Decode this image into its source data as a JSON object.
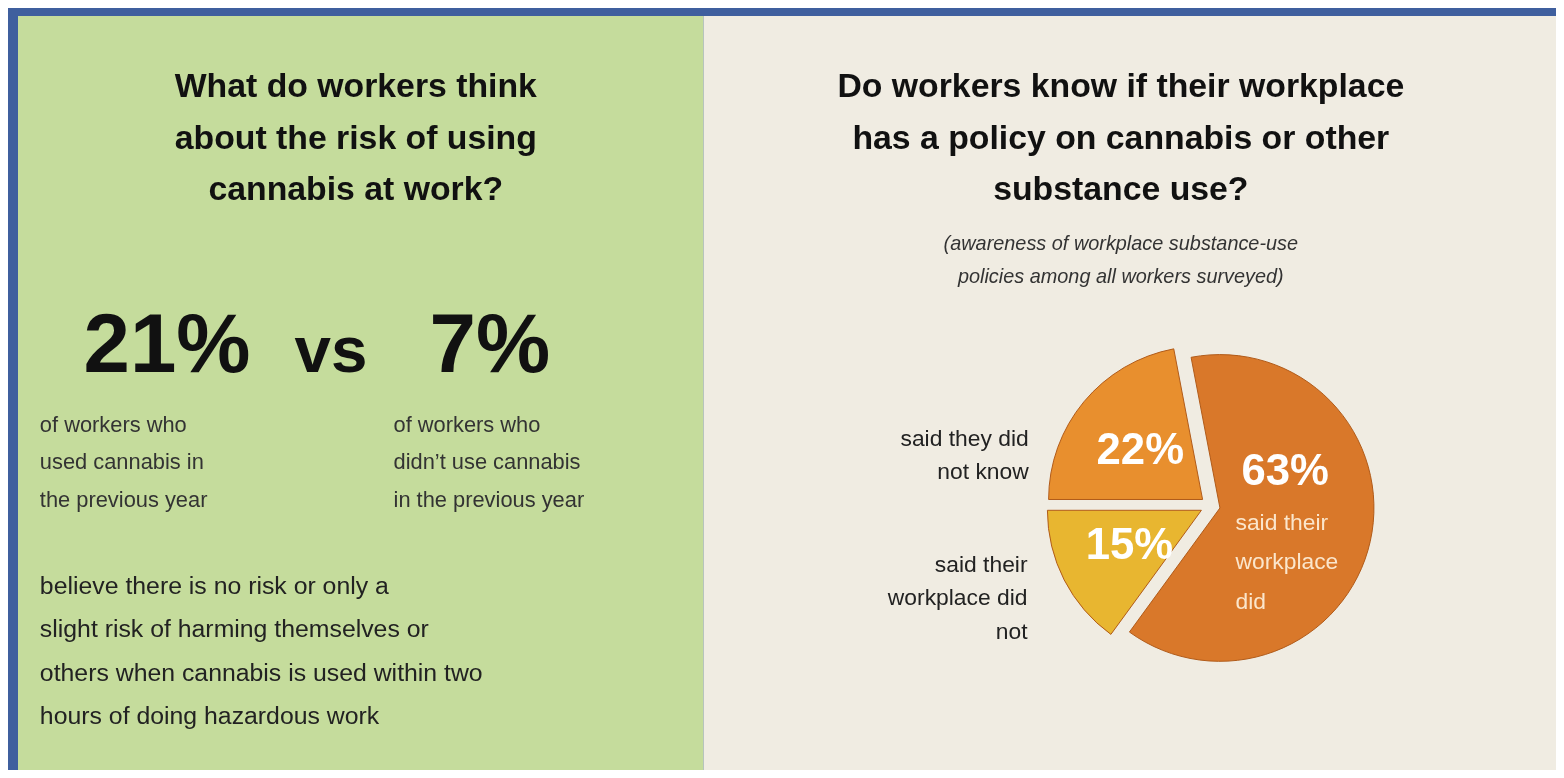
{
  "chart_data": [
    {
      "type": "other",
      "title": "What do workers think about the risk of using cannabis at work?",
      "annotations": [
        "21%",
        "vs",
        "7%",
        "of workers who used cannabis in the previous year",
        "of workers who didn’t use cannabis in the previous year",
        "believe there is no risk or only a slight risk of harming themselves or others when cannabis is used within two hours of doing hazardous work"
      ]
    },
    {
      "type": "pie",
      "title": "Do workers know if their workplace has a policy on cannabis or other substance use?",
      "subtitle": "(awareness of workplace substance-use policies among all workers surveyed)",
      "categories": [
        "said their workplace did",
        "said their workplace did not",
        "said they did not know"
      ],
      "values": [
        63,
        15,
        22
      ],
      "colors": [
        "#d9782a",
        "#e8b630",
        "#e88f2e"
      ],
      "value_labels": [
        "63%",
        "15%",
        "22%"
      ]
    }
  ]
}
